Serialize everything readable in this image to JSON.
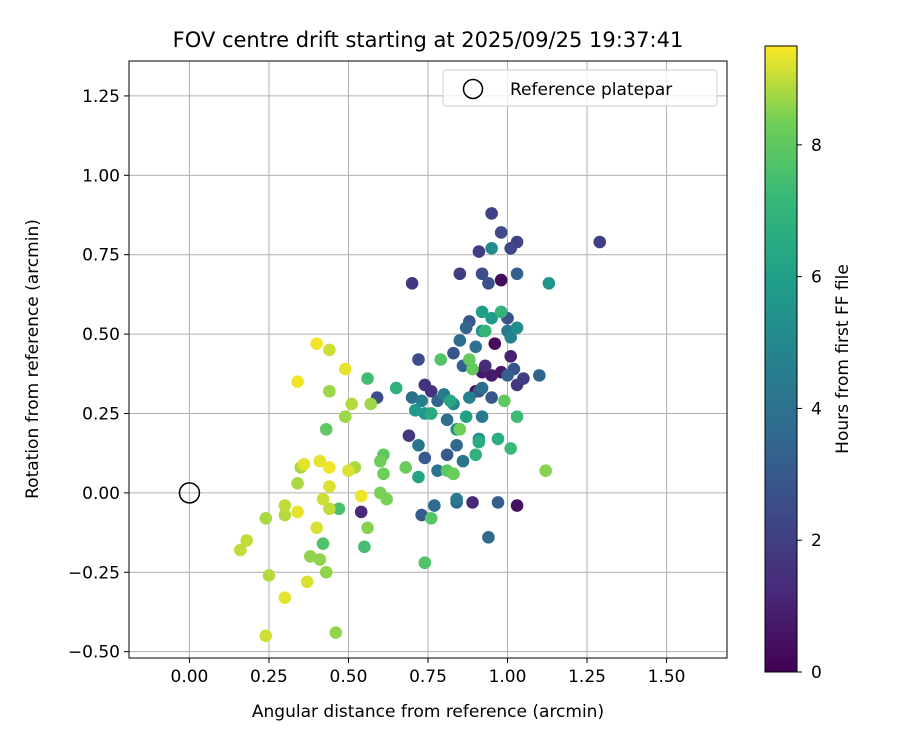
{
  "chart_data": {
    "type": "scatter",
    "title": "FOV centre drift starting at 2025/09/25 19:37:41",
    "xlabel": "Angular distance from reference (arcmin)",
    "ylabel": "Rotation from reference (arcmin)",
    "xlim": [
      -0.19,
      1.69
    ],
    "ylim": [
      -0.52,
      1.36
    ],
    "xticks": [
      0.0,
      0.25,
      0.5,
      0.75,
      1.0,
      1.25,
      1.5
    ],
    "xtick_labels": [
      "0.00",
      "0.25",
      "0.50",
      "0.75",
      "1.00",
      "1.25",
      "1.50"
    ],
    "yticks": [
      -0.5,
      -0.25,
      0.0,
      0.25,
      0.5,
      0.75,
      1.0,
      1.25
    ],
    "ytick_labels": [
      "−0.50",
      "−0.25",
      "0.00",
      "0.25",
      "0.50",
      "0.75",
      "1.00",
      "1.25"
    ],
    "grid": true,
    "legend": {
      "position": "top-right",
      "entries": [
        "Reference platepar"
      ]
    },
    "reference_point": {
      "x": 0.0,
      "y": 0.0,
      "label": "Reference platepar"
    },
    "colorbar": {
      "label": "Hours from first FF file",
      "colormap": "viridis",
      "range": [
        0,
        9.5
      ],
      "ticks": [
        0,
        2,
        4,
        6,
        8
      ],
      "tick_labels": [
        "0",
        "2",
        "4",
        "6",
        "8"
      ]
    },
    "points": [
      {
        "x": 0.98,
        "y": 0.67,
        "t": 0.3
      },
      {
        "x": 0.96,
        "y": 0.47,
        "t": 0.3
      },
      {
        "x": 0.9,
        "y": 0.32,
        "t": 0.4
      },
      {
        "x": 1.03,
        "y": -0.04,
        "t": 0.5
      },
      {
        "x": 0.98,
        "y": 0.38,
        "t": 0.6
      },
      {
        "x": 0.92,
        "y": 0.38,
        "t": 0.8
      },
      {
        "x": 0.95,
        "y": 0.37,
        "t": 0.8
      },
      {
        "x": 1.01,
        "y": 0.43,
        "t": 1.0
      },
      {
        "x": 0.89,
        "y": -0.03,
        "t": 1.2
      },
      {
        "x": 0.54,
        "y": -0.06,
        "t": 1.3
      },
      {
        "x": 0.93,
        "y": 0.4,
        "t": 1.4
      },
      {
        "x": 0.74,
        "y": 0.34,
        "t": 1.6
      },
      {
        "x": 0.76,
        "y": 0.32,
        "t": 1.6
      },
      {
        "x": 1.03,
        "y": 0.34,
        "t": 1.7
      },
      {
        "x": 0.69,
        "y": 0.18,
        "t": 1.8
      },
      {
        "x": 0.7,
        "y": 0.66,
        "t": 1.8
      },
      {
        "x": 0.85,
        "y": 0.69,
        "t": 1.9
      },
      {
        "x": 0.91,
        "y": 0.76,
        "t": 1.9
      },
      {
        "x": 1.05,
        "y": 0.36,
        "t": 1.9
      },
      {
        "x": 1.29,
        "y": 0.79,
        "t": 2.0
      },
      {
        "x": 0.95,
        "y": 0.88,
        "t": 2.1
      },
      {
        "x": 1.03,
        "y": 0.79,
        "t": 2.2
      },
      {
        "x": 1.01,
        "y": 0.77,
        "t": 2.3
      },
      {
        "x": 0.98,
        "y": 0.82,
        "t": 2.4
      },
      {
        "x": 0.59,
        "y": 0.3,
        "t": 2.4
      },
      {
        "x": 0.72,
        "y": 0.42,
        "t": 2.5
      },
      {
        "x": 0.92,
        "y": 0.69,
        "t": 2.6
      },
      {
        "x": 0.94,
        "y": 0.66,
        "t": 2.7
      },
      {
        "x": 1.0,
        "y": 0.55,
        "t": 2.7
      },
      {
        "x": 1.02,
        "y": 0.39,
        "t": 2.8
      },
      {
        "x": 0.83,
        "y": 0.44,
        "t": 2.8
      },
      {
        "x": 0.88,
        "y": 0.54,
        "t": 2.9
      },
      {
        "x": 0.95,
        "y": 0.3,
        "t": 2.9
      },
      {
        "x": 0.81,
        "y": 0.12,
        "t": 3.0
      },
      {
        "x": 0.74,
        "y": 0.11,
        "t": 3.0
      },
      {
        "x": 0.73,
        "y": -0.07,
        "t": 3.1
      },
      {
        "x": 0.91,
        "y": 0.32,
        "t": 3.1
      },
      {
        "x": 0.97,
        "y": -0.03,
        "t": 3.2
      },
      {
        "x": 1.0,
        "y": 0.37,
        "t": 3.2
      },
      {
        "x": 1.03,
        "y": 0.69,
        "t": 3.3
      },
      {
        "x": 0.86,
        "y": 0.4,
        "t": 3.3
      },
      {
        "x": 1.1,
        "y": 0.37,
        "t": 3.4
      },
      {
        "x": 0.87,
        "y": 0.52,
        "t": 3.5
      },
      {
        "x": 0.78,
        "y": 0.29,
        "t": 3.5
      },
      {
        "x": 0.84,
        "y": 0.15,
        "t": 3.6
      },
      {
        "x": 0.84,
        "y": -0.03,
        "t": 3.6
      },
      {
        "x": 0.94,
        "y": -0.14,
        "t": 3.7
      },
      {
        "x": 0.77,
        "y": -0.04,
        "t": 3.7
      },
      {
        "x": 0.85,
        "y": 0.48,
        "t": 3.8
      },
      {
        "x": 0.92,
        "y": 0.33,
        "t": 3.8
      },
      {
        "x": 0.7,
        "y": 0.3,
        "t": 3.9
      },
      {
        "x": 0.81,
        "y": 0.23,
        "t": 3.9
      },
      {
        "x": 0.9,
        "y": 0.46,
        "t": 4.0
      },
      {
        "x": 0.86,
        "y": 0.1,
        "t": 4.1
      },
      {
        "x": 0.72,
        "y": 0.15,
        "t": 4.1
      },
      {
        "x": 0.78,
        "y": 0.07,
        "t": 4.2
      },
      {
        "x": 0.84,
        "y": -0.02,
        "t": 4.3
      },
      {
        "x": 1.0,
        "y": 0.51,
        "t": 4.3
      },
      {
        "x": 0.92,
        "y": 0.24,
        "t": 4.4
      },
      {
        "x": 0.8,
        "y": 0.31,
        "t": 4.5
      },
      {
        "x": 0.73,
        "y": 0.29,
        "t": 4.6
      },
      {
        "x": 0.88,
        "y": 0.3,
        "t": 4.7
      },
      {
        "x": 1.01,
        "y": 0.49,
        "t": 4.8
      },
      {
        "x": 0.83,
        "y": 0.28,
        "t": 4.9
      },
      {
        "x": 0.95,
        "y": 0.77,
        "t": 5.1
      },
      {
        "x": 1.03,
        "y": 0.52,
        "t": 5.2
      },
      {
        "x": 0.91,
        "y": 0.17,
        "t": 5.3
      },
      {
        "x": 0.84,
        "y": 0.2,
        "t": 5.4
      },
      {
        "x": 1.13,
        "y": 0.66,
        "t": 5.5
      },
      {
        "x": 0.92,
        "y": 0.51,
        "t": 5.6
      },
      {
        "x": 0.74,
        "y": 0.25,
        "t": 5.7
      },
      {
        "x": 0.71,
        "y": 0.26,
        "t": 5.8
      },
      {
        "x": 0.95,
        "y": 0.55,
        "t": 5.9
      },
      {
        "x": 0.92,
        "y": 0.57,
        "t": 6.0
      },
      {
        "x": 0.87,
        "y": 0.24,
        "t": 6.1
      },
      {
        "x": 0.72,
        "y": 0.05,
        "t": 6.2
      },
      {
        "x": 0.82,
        "y": 0.29,
        "t": 6.3
      },
      {
        "x": 0.76,
        "y": 0.25,
        "t": 6.5
      },
      {
        "x": 0.91,
        "y": 0.16,
        "t": 6.6
      },
      {
        "x": 0.97,
        "y": 0.17,
        "t": 6.7
      },
      {
        "x": 0.65,
        "y": 0.33,
        "t": 6.8
      },
      {
        "x": 0.9,
        "y": 0.12,
        "t": 6.9
      },
      {
        "x": 0.98,
        "y": 0.57,
        "t": 7.0
      },
      {
        "x": 0.93,
        "y": 0.51,
        "t": 7.1
      },
      {
        "x": 1.01,
        "y": 0.14,
        "t": 7.2
      },
      {
        "x": 1.03,
        "y": 0.24,
        "t": 7.3
      },
      {
        "x": 0.56,
        "y": 0.36,
        "t": 7.4
      },
      {
        "x": 0.55,
        "y": -0.17,
        "t": 7.5
      },
      {
        "x": 0.47,
        "y": -0.05,
        "t": 7.6
      },
      {
        "x": 0.42,
        "y": -0.16,
        "t": 7.7
      },
      {
        "x": 0.74,
        "y": -0.22,
        "t": 7.7
      },
      {
        "x": 0.79,
        "y": 0.42,
        "t": 7.8
      },
      {
        "x": 0.76,
        "y": -0.08,
        "t": 7.8
      },
      {
        "x": 0.81,
        "y": 0.07,
        "t": 7.9
      },
      {
        "x": 0.83,
        "y": 0.06,
        "t": 7.9
      },
      {
        "x": 0.61,
        "y": 0.12,
        "t": 8.0
      },
      {
        "x": 0.43,
        "y": 0.2,
        "t": 8.0
      },
      {
        "x": 0.99,
        "y": 0.29,
        "t": 8.0
      },
      {
        "x": 0.88,
        "y": 0.42,
        "t": 8.1
      },
      {
        "x": 0.89,
        "y": 0.39,
        "t": 8.1
      },
      {
        "x": 0.83,
        "y": 0.06,
        "t": 8.2
      },
      {
        "x": 0.68,
        "y": 0.08,
        "t": 8.2
      },
      {
        "x": 0.85,
        "y": 0.2,
        "t": 8.3
      },
      {
        "x": 0.6,
        "y": 0.1,
        "t": 8.3
      },
      {
        "x": 0.61,
        "y": 0.06,
        "t": 8.3
      },
      {
        "x": 0.6,
        "y": 0.0,
        "t": 8.4
      },
      {
        "x": 0.62,
        "y": -0.02,
        "t": 8.4
      },
      {
        "x": 1.12,
        "y": 0.07,
        "t": 8.5
      },
      {
        "x": 0.56,
        "y": -0.11,
        "t": 8.5
      },
      {
        "x": 0.38,
        "y": -0.2,
        "t": 8.6
      },
      {
        "x": 0.41,
        "y": -0.21,
        "t": 8.6
      },
      {
        "x": 0.43,
        "y": -0.25,
        "t": 8.6
      },
      {
        "x": 0.46,
        "y": -0.44,
        "t": 8.6
      },
      {
        "x": 0.57,
        "y": 0.28,
        "t": 8.7
      },
      {
        "x": 0.49,
        "y": 0.24,
        "t": 8.7
      },
      {
        "x": 0.44,
        "y": 0.32,
        "t": 8.7
      },
      {
        "x": 0.52,
        "y": 0.08,
        "t": 8.8
      },
      {
        "x": 0.35,
        "y": 0.08,
        "t": 8.8
      },
      {
        "x": 0.34,
        "y": 0.03,
        "t": 8.8
      },
      {
        "x": 0.24,
        "y": -0.08,
        "t": 8.8
      },
      {
        "x": 0.3,
        "y": -0.07,
        "t": 8.9
      },
      {
        "x": 0.25,
        "y": -0.26,
        "t": 8.9
      },
      {
        "x": 0.51,
        "y": 0.28,
        "t": 8.9
      },
      {
        "x": 0.44,
        "y": -0.05,
        "t": 9.0
      },
      {
        "x": 0.3,
        "y": -0.04,
        "t": 9.0
      },
      {
        "x": 0.16,
        "y": -0.18,
        "t": 9.0
      },
      {
        "x": 0.18,
        "y": -0.15,
        "t": 9.0
      },
      {
        "x": 0.24,
        "y": -0.45,
        "t": 9.1
      },
      {
        "x": 0.44,
        "y": 0.45,
        "t": 9.1
      },
      {
        "x": 0.42,
        "y": -0.02,
        "t": 9.1
      },
      {
        "x": 0.5,
        "y": 0.07,
        "t": 9.2
      },
      {
        "x": 0.44,
        "y": 0.02,
        "t": 9.2
      },
      {
        "x": 0.37,
        "y": -0.28,
        "t": 9.2
      },
      {
        "x": 0.4,
        "y": -0.11,
        "t": 9.2
      },
      {
        "x": 0.36,
        "y": 0.09,
        "t": 9.3
      },
      {
        "x": 0.41,
        "y": 0.1,
        "t": 9.3
      },
      {
        "x": 0.49,
        "y": 0.39,
        "t": 9.3
      },
      {
        "x": 0.34,
        "y": -0.06,
        "t": 9.3
      },
      {
        "x": 0.3,
        "y": -0.33,
        "t": 9.3
      },
      {
        "x": 0.4,
        "y": 0.47,
        "t": 9.4
      },
      {
        "x": 0.34,
        "y": 0.35,
        "t": 9.4
      },
      {
        "x": 0.44,
        "y": 0.08,
        "t": 9.4
      },
      {
        "x": 0.54,
        "y": -0.01,
        "t": 9.4
      }
    ]
  }
}
